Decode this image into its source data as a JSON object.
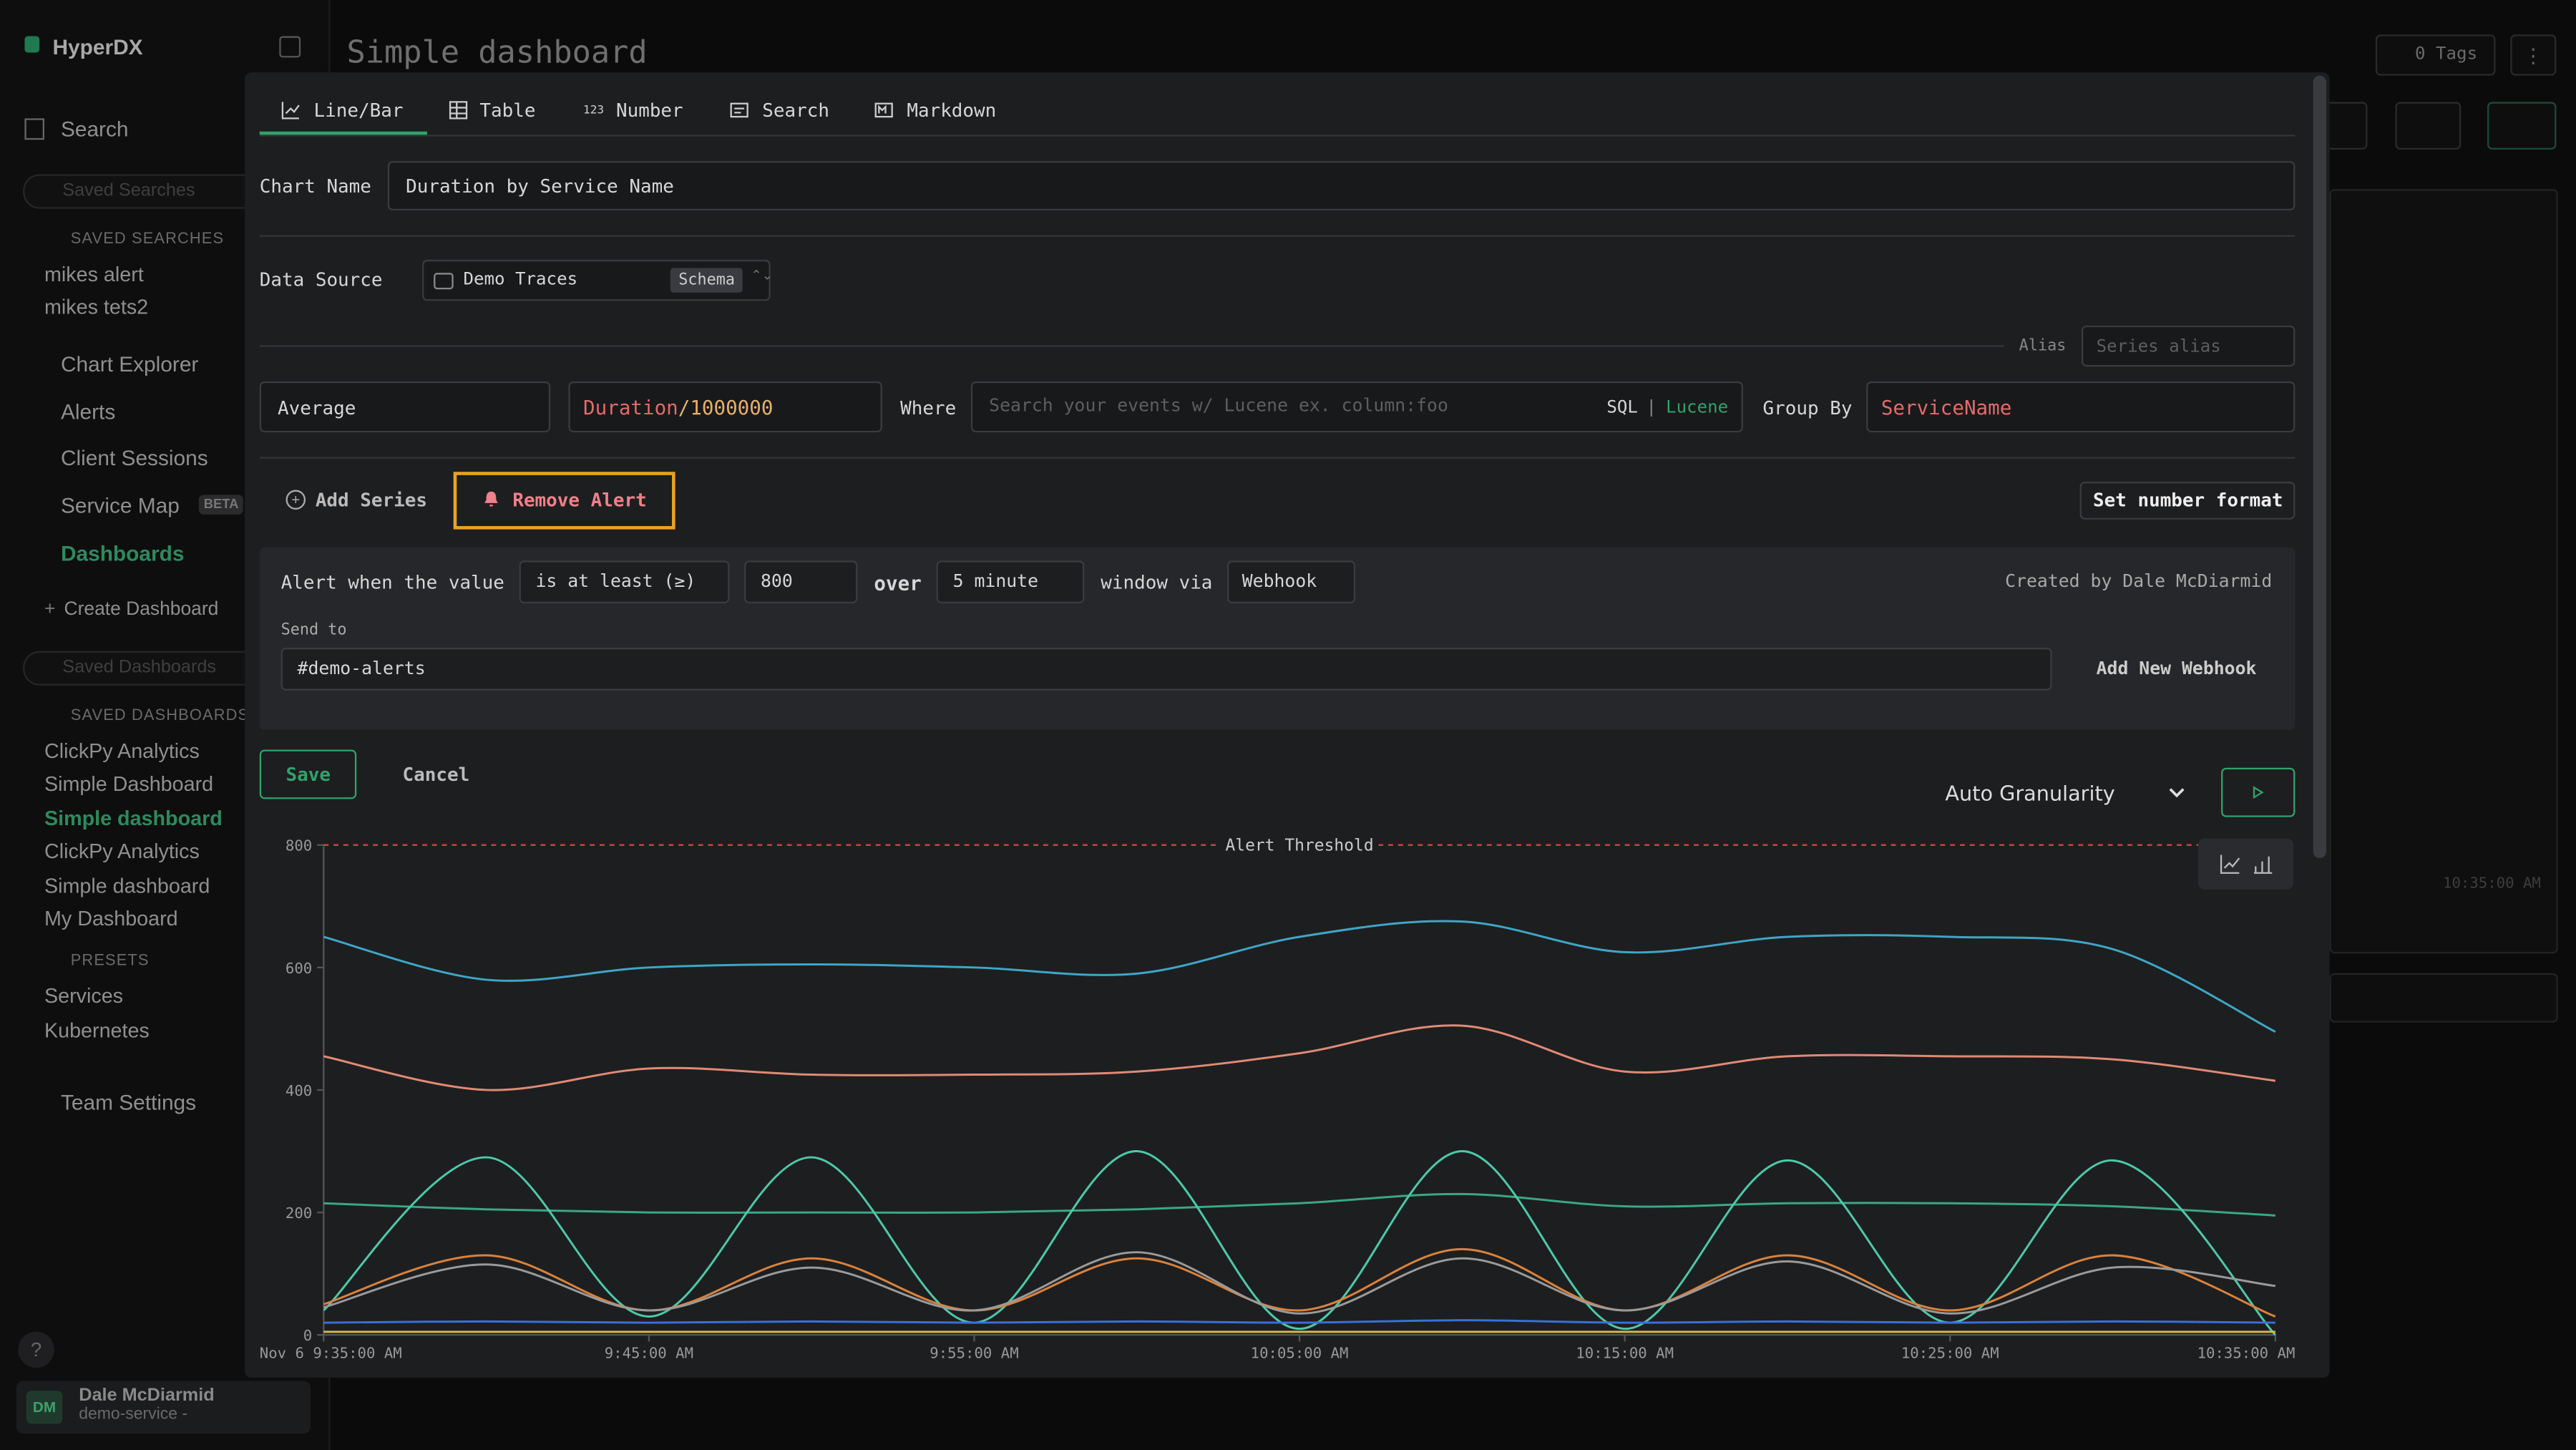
{
  "sidebar": {
    "brand": "HyperDX",
    "search": "Search",
    "saved_search_placeholder": "Saved Searches",
    "saved_searches_heading": "SAVED SEARCHES",
    "saved_searches": [
      "mikes alert",
      "mikes tets2"
    ],
    "nav": [
      "Chart Explorer",
      "Alerts",
      "Client Sessions",
      "Service Map"
    ],
    "beta": "BETA",
    "dashboards": "Dashboards",
    "create_dashboard": "Create Dashboard",
    "saved_dashboards_placeholder": "Saved Dashboards",
    "saved_dashboards_heading": "SAVED DASHBOARDS",
    "saved_dashboards": [
      "ClickPy Analytics",
      "Simple Dashboard",
      "Simple dashboard",
      "ClickPy Analytics",
      "Simple dashboard",
      "My Dashboard"
    ],
    "presets_heading": "PRESETS",
    "presets": [
      "Services",
      "Kubernetes"
    ],
    "team_settings": "Team Settings",
    "help": "?",
    "user": {
      "initials": "DM",
      "name": "Dale McDiarmid",
      "team": "demo-service -"
    }
  },
  "header": {
    "title": "Simple dashboard",
    "tags": "0 Tags",
    "background_x_label": "10:35:00 AM"
  },
  "editor": {
    "tabs": [
      "Line/Bar",
      "Table",
      "Number",
      "Search",
      "Markdown"
    ],
    "number_icon": "123",
    "chart_name_label": "Chart Name",
    "chart_name": "Duration by Service Name",
    "data_source_label": "Data Source",
    "data_source": "Demo Traces",
    "schema": "Schema",
    "alias_label": "Alias",
    "alias_placeholder": "Series alias",
    "aggregation": "Average",
    "expression_field": "Duration",
    "expression_divisor": "/1000000",
    "where_label": "Where",
    "where_placeholder": "Search your events w/ Lucene ex. column:foo",
    "sql": "SQL",
    "separator": "|",
    "lucene": "Lucene",
    "group_by_label": "Group By",
    "group_by": "ServiceName",
    "add_series": "Add Series",
    "remove_alert": "Remove Alert",
    "set_number_format": "Set number format",
    "alert": {
      "prefix": "Alert when the value",
      "condition": "is at least (≥)",
      "threshold": 800,
      "over": "over",
      "interval": "5 minute",
      "window_via": "window via",
      "channel": "Webhook",
      "created_by": "Created by Dale McDiarmid",
      "send_to_label": "Send to",
      "webhook": "#demo-alerts",
      "add_webhook": "Add New Webhook"
    },
    "save": "Save",
    "cancel": "Cancel",
    "granularity": "Auto Granularity"
  },
  "chart_data": {
    "type": "line",
    "annotation": "Alert Threshold",
    "x_tick_labels": [
      "Nov 6 9:35:00 AM",
      "9:45:00 AM",
      "9:55:00 AM",
      "10:05:00 AM",
      "10:15:00 AM",
      "10:25:00 AM",
      "10:35:00 AM"
    ],
    "ylim": [
      0,
      800
    ],
    "yticks": [
      0,
      200,
      400,
      600,
      800
    ],
    "series": [
      {
        "color": "#3ea6c6",
        "values": [
          650,
          580,
          600,
          605,
          600,
          590,
          650,
          675,
          625,
          650,
          650,
          630,
          495
        ]
      },
      {
        "color": "#e08a75",
        "values": [
          455,
          400,
          435,
          425,
          425,
          430,
          460,
          505,
          430,
          455,
          455,
          450,
          415
        ]
      },
      {
        "color": "#3aa882",
        "values": [
          215,
          205,
          200,
          200,
          200,
          205,
          215,
          230,
          210,
          215,
          215,
          210,
          195
        ]
      },
      {
        "color": "#4cc9a8",
        "values": [
          40,
          290,
          30,
          290,
          20,
          300,
          10,
          300,
          10,
          285,
          20,
          285,
          0
        ]
      },
      {
        "color": "#d9823c",
        "values": [
          50,
          130,
          40,
          125,
          40,
          125,
          40,
          140,
          40,
          130,
          40,
          130,
          30
        ]
      },
      {
        "color": "#9a9a9a",
        "values": [
          45,
          115,
          40,
          110,
          40,
          135,
          35,
          125,
          40,
          120,
          35,
          110,
          80
        ]
      },
      {
        "color": "#3a6fd8",
        "values": [
          20,
          22,
          20,
          22,
          20,
          22,
          20,
          24,
          20,
          22,
          20,
          22,
          20
        ]
      },
      {
        "color": "#d4b84a",
        "values": [
          5,
          5,
          5,
          5,
          5,
          5,
          5,
          5,
          5,
          5,
          5,
          5,
          5
        ]
      }
    ]
  }
}
